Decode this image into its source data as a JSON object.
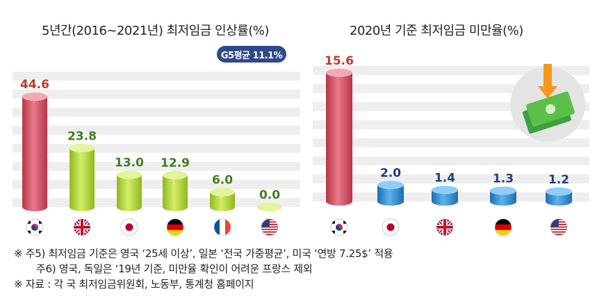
{
  "chart_data": [
    {
      "type": "bar",
      "title": "5년간(2016~2021년) 최저임금 인상률(%)",
      "annotation": "G5평균 11.1%",
      "categories": [
        "한국",
        "영국",
        "일본",
        "독일",
        "프랑스",
        "미국"
      ],
      "flags": [
        "kr-flag-icon",
        "uk-flag-icon",
        "jp-flag-icon",
        "de-flag-icon",
        "fr-flag-icon",
        "us-flag-icon"
      ],
      "values": [
        44.6,
        23.8,
        13.0,
        12.9,
        6.0,
        0.0
      ],
      "value_labels": [
        "44.6",
        "23.8",
        "13.0",
        "12.9",
        "6.0",
        "0.0"
      ],
      "colors": [
        "#d6556a",
        "#a9cf2a",
        "#a9cf2a",
        "#a9cf2a",
        "#a9cf2a",
        "#a9cf2a"
      ],
      "label_colors": [
        "#c0392b",
        "#3f7f1f",
        "#3f7f1f",
        "#3f7f1f",
        "#3f7f1f",
        "#3f7f1f"
      ],
      "ylim": [
        0,
        50
      ],
      "grid": true
    },
    {
      "type": "bar",
      "title": "2020년 기준 최저임금 미만율(%)",
      "categories": [
        "한국",
        "일본",
        "영국",
        "독일",
        "미국"
      ],
      "flags": [
        "kr-flag-icon",
        "jp-flag-icon",
        "uk-flag-icon",
        "de-flag-icon",
        "us-flag-icon"
      ],
      "values": [
        15.6,
        2.0,
        1.4,
        1.3,
        1.2
      ],
      "value_labels": [
        "15.6",
        "2.0",
        "1.4",
        "1.3",
        "1.2"
      ],
      "colors": [
        "#d6556a",
        "#2f8ad0",
        "#2f8ad0",
        "#2f8ad0",
        "#2f8ad0"
      ],
      "label_colors": [
        "#c0392b",
        "#1f3f7a",
        "#1f3f7a",
        "#1f3f7a",
        "#1f3f7a"
      ],
      "ylim": [
        0,
        16
      ],
      "grid": true,
      "decoration_icon": "money-down-icon"
    }
  ],
  "notes": [
    "※ 주5) 최저임금 기준은 영국 ‘25세 이상’, 일본 ‘전국 가중평균’, 미국 ‘연방 7.25$’ 적용",
    "주6) 영국, 독일은 ‘19년 기준, 미만율 확인이 어려운 프랑스 제외",
    "※ 자료 : 각 국 최저임금위원회, 노동부, 통계청 홈페이지"
  ]
}
